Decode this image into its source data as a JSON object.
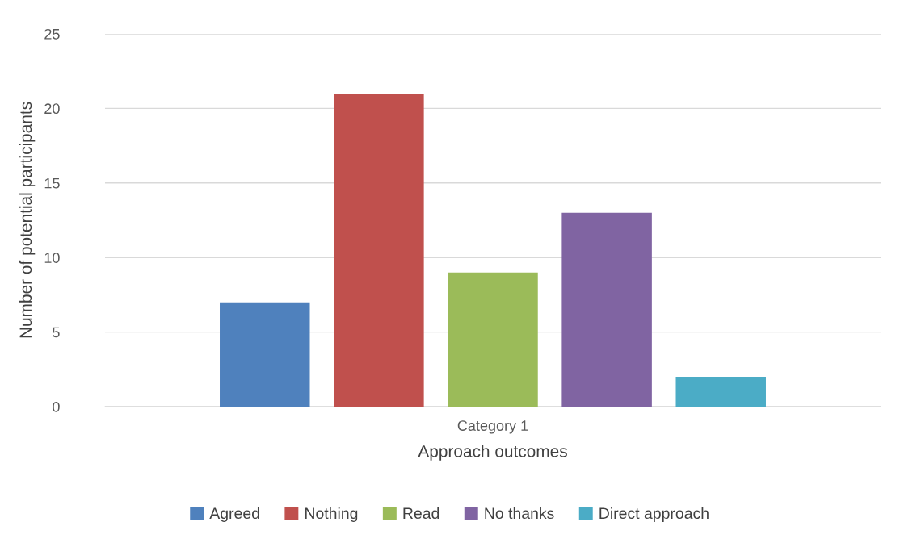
{
  "chart_data": {
    "type": "bar",
    "categories": [
      "Category 1"
    ],
    "xlabel": "Approach outcomes",
    "ylabel": "Number of potential participants",
    "series": [
      {
        "name": "Agreed",
        "color": "#4f81bd",
        "values": [
          7
        ]
      },
      {
        "name": "Nothing",
        "color": "#c0504d",
        "values": [
          21
        ]
      },
      {
        "name": "Read",
        "color": "#9bbb59",
        "values": [
          9
        ]
      },
      {
        "name": "No thanks",
        "color": "#8064a2",
        "values": [
          13
        ]
      },
      {
        "name": "Direct approach",
        "color": "#4bacc6",
        "values": [
          2
        ]
      }
    ],
    "ylim": [
      0,
      25
    ],
    "yticks": [
      0,
      5,
      10,
      15,
      20,
      25
    ],
    "grid": "y",
    "legend": "bottom"
  }
}
